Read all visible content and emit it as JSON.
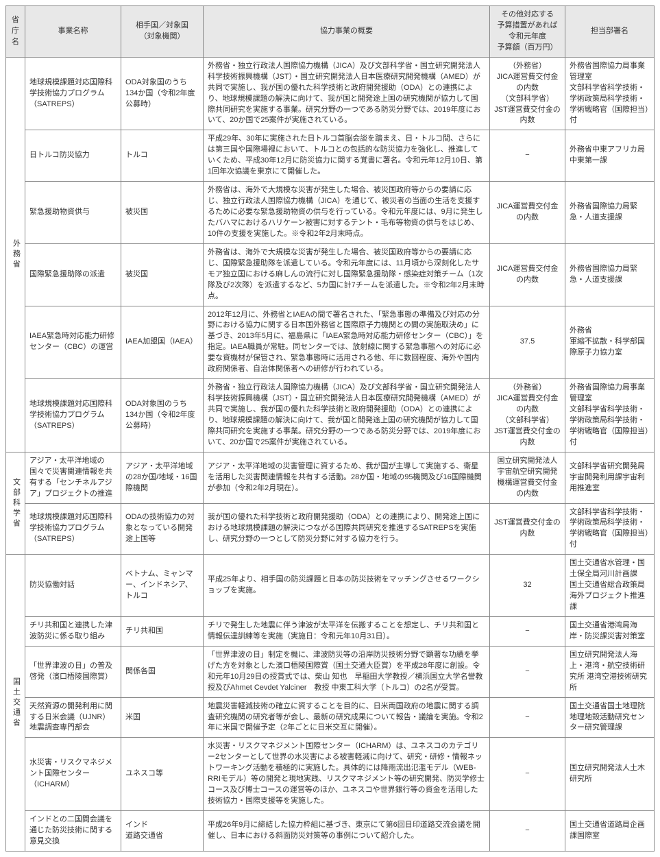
{
  "headers": {
    "ministry": "省庁名",
    "project": "事業名称",
    "partner": "相手国／対象国\n（対象機関）",
    "summary": "協力事業の概要",
    "budget": "その他対応する\n予算措置があれば\n令和元年度\n予算額（百万円）",
    "dept": "担当部署名"
  },
  "ministries": [
    {
      "name": "外務省",
      "rows": [
        {
          "project": "地球規模課題対応国際科学技術協力プログラム（SATREPS）",
          "partner": "ODA対象国のうち134か国（令和2年度公募時）",
          "summary": "外務省・独立行政法人国際協力機構（JICA）及び文部科学省・国立研究開発法人科学技術振興機構（JST）・国立研究開発法人日本医療研究開発機構（AMED）が共同で実施し、我が国の優れた科学技術と政府開発援助（ODA）との連携により、地球規模課題の解決に向けて、我が国と開発途上国の研究機関が協力して国際共同研究を実施する事業。研究分野の一つである防災分野では、2019年度において、20か国で25案件が実施されている。",
          "budget": "（外務省）\nJICA運営費交付金の内数\n（文部科学省）\nJST運営費交付金の内数",
          "dept": "外務省国際協力局事業管理室\n文部科学省科学技術・学術政策局科学技術・学術戦略官（国際担当）付"
        },
        {
          "project": "日トルコ防災協力",
          "partner": "トルコ",
          "summary": "平成29年、30年に実施された日トルコ首脳会談を踏まえ、日・トルコ間、さらには第三国や国際場裡において、トルコとの包括的な防災協力を強化し、推進していくため、平成30年12月に防災協力に関する覚書に署名。令和元年12月10日、第1回年次協議を東京にて開催した。",
          "budget": "−",
          "dept": "外務省中東アフリカ局中東第一課"
        },
        {
          "project": "緊急援助物資供与",
          "partner": "被災国",
          "summary": "外務省は、海外で大規模な災害が発生した場合、被災国政府等からの要請に応じ、独立行政法人国際協力機構（JICA）を通じて、被災者の当面の生活を支援するために必要な緊急援助物資の供与を行っている。令和元年度には、9月に発生したバハマにおけるハリケーン被害に対するテント・毛布等物資の供与をはじめ、10件の支援を実施した。※令和2年2月末時点。",
          "budget": "JICA運営費交付金の内数",
          "dept": "外務省国際協力局緊急・人道支援課"
        },
        {
          "project": "国際緊急援助隊の派遣",
          "partner": "被災国",
          "summary": "外務省は、海外で大規模な災害が発生した場合、被災国政府等からの要請に応じ、国際緊急援助隊を派遣している。令和元年度には、11月頃から深刻化したサモア独立国における麻しんの流行に対し国際緊急援助隊・感染症対策チーム（1次隊及び2次隊）を派遣するなど、5カ国に計7チームを派遣した。※令和2年2月末時点。",
          "budget": "JICA運営費交付金の内数",
          "dept": "外務省国際協力局緊急・人道支援課"
        },
        {
          "project": "IAEA緊急時対応能力研修センター（CBC）の運営",
          "partner": "IAEA加盟国（IAEA）",
          "summary": "2012年12月に、外務省とIAEAの間で署名された、「緊急事態の準備及び対応の分野における協力に関する日本国外務省と国際原子力機関との間の実施取決め」に基づき、2013年5月に、福島県に「IAEA緊急時対応能力研修センター（CBC）」を指定。IAEA職員が常駐。同センターでは、放射線に関する緊急事態への対応に必要な資機材が保管され、緊急事態時に活用される他、年に数回程度、海外や国内政府関係者、自治体関係者への研修が行われている。",
          "budget": "37.5",
          "dept": "外務省\n軍縮不拡散・科学部国際原子力協力室"
        },
        {
          "project": "地球規模課題対応国際科学技術協力プログラム（SATREPS）",
          "partner": "ODA対象国のうち134か国（令和2年度公募時）",
          "summary": "外務省・独立行政法人国際協力機構（JICA）及び文部科学省・国立研究開発法人科学技術振興機構（JST）・国立研究開発法人日本医療研究開発機構（AMED）が共同で実施し、我が国の優れた科学技術と政府開発援助（ODA）との連携により、地球規模課題の解決に向けて、我が国と開発途上国の研究機関が協力して国際共同研究を実施する事業。研究分野の一つである防災分野では、2019年度において、20か国で25案件が実施されている。",
          "budget": "（外務省）\nJICA運営費交付金の内数\n（文部科学省）\nJST運営費交付金の内数",
          "dept": "外務省国際協力局事業管理室\n文部科学省科学技術・学術政策局科学技術・学術戦略官（国際担当）付"
        }
      ]
    },
    {
      "name": "文部科学省",
      "rows": [
        {
          "project": "アジア・太平洋地域の国々で災害関連情報を共有する「センチネルアジア」プロジェクトの推進",
          "partner": "アジア・太平洋地域の28か国/地域・16国際機関",
          "summary": "アジア・太平洋地域の災害管理に資するため、我が国が主導して実施する、衛星を活用した災害関連情報を共有する活動。28か国・地域の95機関及び16国際機関が参加（令和2年2月現在）。",
          "budget": "国立研究開発法人宇宙航空研究開発機構運営費交付金の内数",
          "dept": "文部科学省研究開発局宇宙開発利用課宇宙利用推進室"
        },
        {
          "project": "地球規模課題対応国際科学技術協力プログラム（SATREPS）",
          "partner": "ODAの技術協力の対象となっている開発途上国等",
          "summary": "我が国の優れた科学技術と政府開発援助（ODA）との連携により、開発途上国における地球規模課題の解決につながる国際共同研究を推進するSATREPSを実施し、研究分野の一つとして防災分野に対する協力を行う。",
          "budget": "JST運営費交付金の内数",
          "dept": "文部科学省科学技術・学術政策局科学技術・学術戦略官（国際担当）付"
        }
      ]
    },
    {
      "name": "国土交通省",
      "rows": [
        {
          "project": "防災協働対話",
          "partner": "ベトナム、ミャンマー、インドネシア、トルコ",
          "summary": "平成25年より、相手国の防災課題と日本の防災技術をマッチングさせるワークショップを実施。",
          "budget": "32",
          "dept": "国土交通省水管理・国土保全局河川計画課\n国土交通省総合政策局海外プロジェクト推進課"
        },
        {
          "project": "チリ共和国と連携した津波防災に係る取り組み",
          "partner": "チリ共和国",
          "summary": "チリで発生した地震に伴う津波が太平洋を伝搬することを想定し、チリ共和国と情報伝達訓練等を実施（実施日：令和元年10月31日）。",
          "budget": "−",
          "dept": "国土交通省港湾局海岸・防災課災害対策室"
        },
        {
          "project": "「世界津波の日」の普及啓発（濱口梧陵国際賞）",
          "partner": "関係各国",
          "summary": "「世界津波の日」制定を機に、津波防災等の沿岸防災技術分野で顕著な功績を挙げた方を対象とした濱口梧陵国際賞（国土交通大臣賞）を平成28年度に創設。令和元年10月29日の授賞式では、柴山 知也　早稲田大学教授／横浜国立大学名誉教授及びAhmet Cevdet Yalciner　教授 中東工科大学（トルコ）の2名が受賞。",
          "budget": "−",
          "dept": "国立研究開発法人海上・港湾・航空技術研究所 港湾空港技術研究所"
        },
        {
          "project": "天然資源の開発利用に関する日米会議（UJNR）地震調査専門部会",
          "partner": "米国",
          "summary": "地震災害軽減技術の確立に資することを目的に、日米両国政府の地震に関する調査研究機関の研究者等が会し、最新の研究成果について報告・議論を実施。令和2年に米国で開催予定（2年ごとに日米交互に開催）。",
          "budget": "−",
          "dept": "国土交通省国土地理院地理地殻活動研究センター研究管理課"
        },
        {
          "project": "水災害・リスクマネジメント国際センター（ICHARM）",
          "partner": "ユネスコ等",
          "summary": "水災害・リスクマネジメント国際センター（ICHARM）は、ユネスコのカテゴリー2センターとして世界の水災害による被害軽減に向けて、研究・研修・情報ネットワーキング活動を積極的に実施した。具体的には降雨流出氾濫モデル（WEB-RRIモデル）等の開発と現地実践、リスクマネジメント等の研究開発、防災学修士コース及び博士コースの運営等のほか、ユネスコや世界銀行等の資金を活用した技術協力・国際支援等を実施した。",
          "budget": "−",
          "dept": "国立研究開発法人土木研究所"
        },
        {
          "project": "インドとの二国間会議を通じた防災技術に関する意見交換",
          "partner": "インド\n道路交通省",
          "summary": "平成26年9月に締結した協力枠組に基づき、東京にて第6回日印道路交流会議を開催し、日本における斜面防災対策等の事例について紹介した。",
          "budget": "−",
          "dept": "国土交通省道路局企画課国際室"
        }
      ]
    }
  ]
}
